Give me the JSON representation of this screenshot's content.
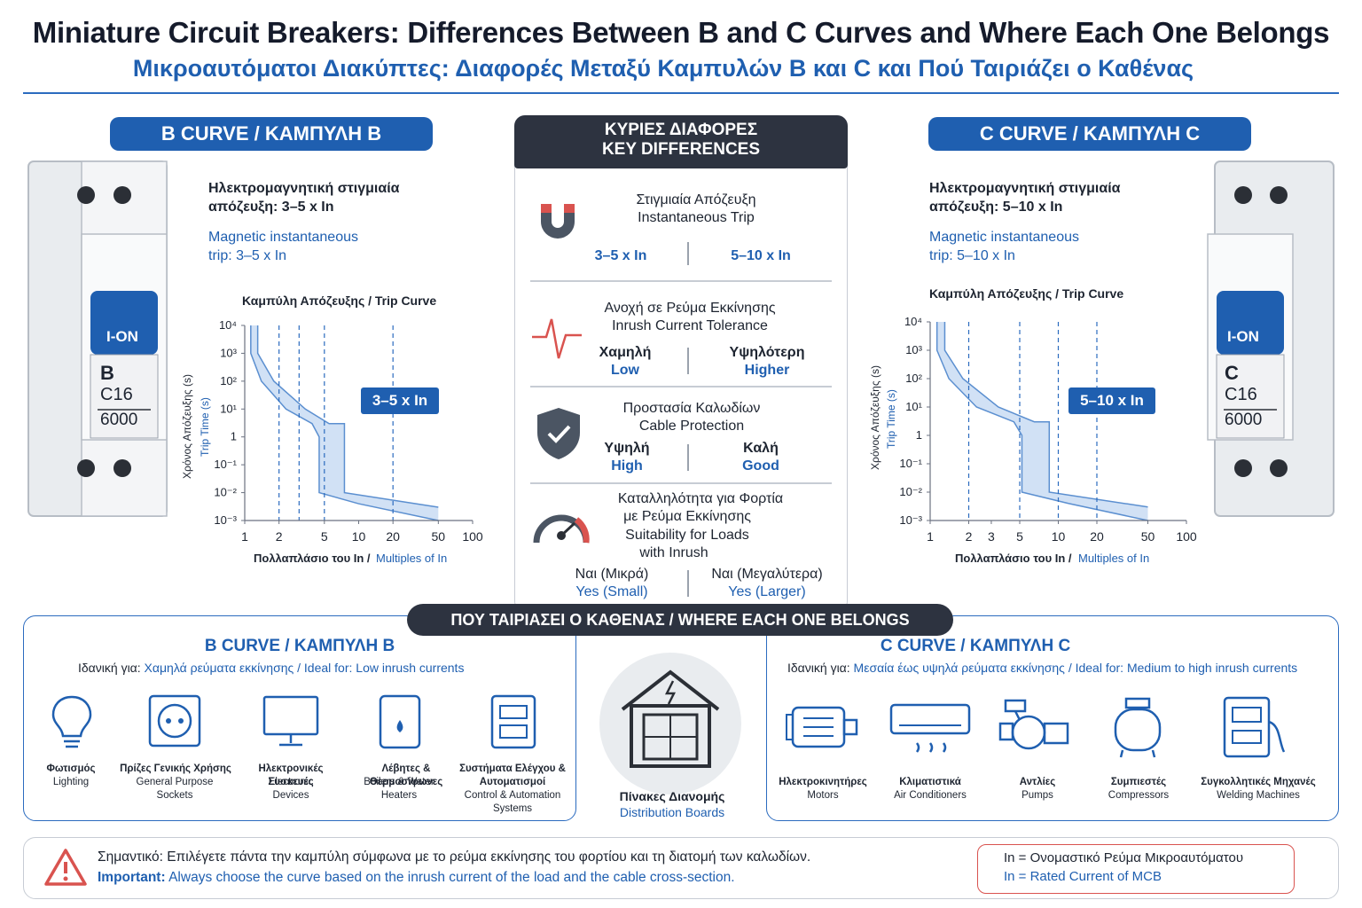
{
  "title": {
    "en": "Miniature Circuit Breakers: Differences Between B and C Curves and Where Each One Belongs",
    "gr": "Μικροαυτόματοι Διακύπτες: Διαφορές Μεταξύ Καμπυλών Β και C και Πού Ταιριάζει ο Καθένας"
  },
  "left": {
    "header": "B CURVE / ΚΑΜΠΥΛΗ Β",
    "breaker": {
      "on_label": "I-ON",
      "curve_letter": "B",
      "rating": "C16",
      "capacity": "6000"
    },
    "trip_gr_1": "Ηλεκτρομαγνητική στιγμιαία",
    "trip_gr_2": "απόζευξη: 3–5 x In",
    "trip_en_1": "Magnetic instantaneous",
    "trip_en_2": "trip: 3–5 x In",
    "chart_title": "Καμπύλη Απόζευξης / Trip Curve",
    "ylabel_gr": "Χρόνος Απόζευξης (s)",
    "ylabel_en": "Trip Time (s)",
    "xlabel_gr": "Πολλαπλάσιο του In /",
    "xlabel_en": "Multiples of In",
    "badge": "3–5 x In",
    "xticks": [
      "1",
      "2",
      "5",
      "10",
      "20",
      "50",
      "100"
    ]
  },
  "right": {
    "header": "C CURVE / ΚΑΜΠΥΛΗ C",
    "breaker": {
      "on_label": "I-ON",
      "curve_letter": "C",
      "rating": "C16",
      "capacity": "6000"
    },
    "trip_gr_1": "Ηλεκτρομαγνητική στιγμιαία",
    "trip_gr_2": "απόζευξη: 5–10 x In",
    "trip_en_1": "Magnetic instantaneous",
    "trip_en_2": "trip: 5–10 x In",
    "chart_title": "Καμπύλη Απόζευξης / Trip Curve",
    "ylabel_gr": "Χρόνος Απόζευξης (s)",
    "ylabel_en": "Trip Time (s)",
    "xlabel_gr": "Πολλαπλάσιο του In /",
    "xlabel_en": "Multiples of In",
    "badge": "5–10 x In",
    "xticks": [
      "1",
      "2",
      "3",
      "5",
      "10",
      "20",
      "50",
      "100"
    ]
  },
  "yticks": [
    "10⁴",
    "10³",
    "10²",
    "10¹",
    "1",
    "10⁻¹",
    "10⁻²",
    "10⁻³"
  ],
  "chart_data": [
    {
      "type": "area",
      "title": "Καμπύλη Απόζευξης / Trip Curve",
      "xlabel": "Πολλαπλάσιο του In / Multiples of In",
      "ylabel": "Χρόνος Απόζευξης (s) / Trip Time (s)",
      "xscale": "log",
      "yscale": "log",
      "xlim": [
        1,
        100
      ],
      "ylim": [
        0.001,
        10000
      ],
      "magnetic_band": [
        3,
        5
      ],
      "upper": {
        "x": [
          1.3,
          1.3,
          1.8,
          3.4,
          5.5,
          7.5,
          7.5,
          50
        ],
        "y": [
          10000,
          1000,
          100,
          10,
          3,
          3,
          0.01,
          0.003
        ]
      },
      "lower": {
        "x": [
          1.13,
          1.13,
          1.4,
          2.3,
          3.9,
          4.5,
          4.5,
          10,
          50
        ],
        "y": [
          10000,
          1000,
          100,
          10,
          3,
          1,
          0.01,
          0.004,
          0.001
        ]
      },
      "grid": false
    },
    {
      "type": "area",
      "title": "Καμπύλη Απόζευξης / Trip Curve",
      "xlabel": "Πολλαπλάσιο του In / Multiples of In",
      "ylabel": "Χρόνος Απόζευξης (s) / Trip Time (s)",
      "xscale": "log",
      "yscale": "log",
      "xlim": [
        1,
        100
      ],
      "ylim": [
        0.001,
        10000
      ],
      "magnetic_band": [
        5,
        10
      ],
      "upper": {
        "x": [
          1.3,
          1.3,
          1.8,
          3.4,
          6.5,
          8.5,
          8.5,
          50
        ],
        "y": [
          10000,
          1000,
          100,
          10,
          3,
          3,
          0.01,
          0.003
        ]
      },
      "lower": {
        "x": [
          1.13,
          1.13,
          1.4,
          2.3,
          4.5,
          5.2,
          5.2,
          12,
          50
        ],
        "y": [
          10000,
          1000,
          100,
          10,
          3,
          1,
          0.01,
          0.004,
          0.001
        ]
      },
      "grid": false
    }
  ],
  "middle": {
    "header_gr": "ΚΥΡΙΕΣ ΔΙΑΦΟΡΕΣ",
    "header_en": "KEY DIFFERENCES",
    "rows": [
      {
        "t_gr": "Στιγμιαία Απόζευξη",
        "t_en": "Instantaneous Trip",
        "b_val": "3–5 x In",
        "c_val": "5–10 x In"
      },
      {
        "t_gr": "Ανοχή σε Ρεύμα Εκκίνησης",
        "t_en": "Inrush Current Tolerance",
        "b_gr": "Χαμηλή",
        "b_en": "Low",
        "c_gr": "Υψηλότερη",
        "c_en": "Higher"
      },
      {
        "t_gr": "Προστασία Καλωδίων",
        "t_en": "Cable Protection",
        "b_gr": "Υψηλή",
        "b_en": "High",
        "c_gr": "Καλή",
        "c_en": "Good"
      },
      {
        "t_gr1": "Καταλληλότητα για Φορτία",
        "t_gr2": "με Ρεύμα Εκκίνησης",
        "t_en1": "Suitability for Loads",
        "t_en2": "with Inrush",
        "b_gr": "Ναι (Μικρά)",
        "b_en": "Yes (Small)",
        "c_gr": "Ναι (Μεγαλύτερα)",
        "c_en": "Yes (Larger)"
      }
    ]
  },
  "belongs": {
    "header": "ΠΟΥ ΤΑΙΡΙΑΣΕΙ Ο ΚΑΘΕΝΑΣ / WHERE EACH ONE BELONGS",
    "b_title": "B CURVE / ΚΑΜΠΥΛΗ Β",
    "b_prefix": "Ιδανική για:",
    "b_ideal": "Χαμηλά ρεύματα εκκίνησης / Ideal for: Low inrush currents",
    "b_items": [
      {
        "gr": "Φωτισμός",
        "en": "Lighting"
      },
      {
        "gr": "Πρίζες Γενικής Χρήσης",
        "en": "General Purpose Sockets"
      },
      {
        "gr": "Ηλεκτρονικές Συσκευές",
        "en": "Electronic Devices"
      },
      {
        "gr": "Λέβητες & Θερμοσίφωνες",
        "en": "Boilers & Water Heaters"
      },
      {
        "gr": "Συστήματα Ελέγχου & Αυτοματισμοί",
        "en": "Control & Automation Systems"
      }
    ],
    "center_gr": "Πίνακες Διανομής",
    "center_en": "Distribution Boards",
    "c_title": "C CURVE / ΚΑΜΠΥΛΗ C",
    "c_prefix": "Ιδανική για:",
    "c_ideal": "Μεσαία έως υψηλά ρεύματα εκκίνησης / Ideal for: Medium to high inrush currents",
    "c_items": [
      {
        "gr": "Ηλεκτροκινητήρες",
        "en": "Motors"
      },
      {
        "gr": "Κλιματιστικά",
        "en": "Air Conditioners"
      },
      {
        "gr": "Αντλίες",
        "en": "Pumps"
      },
      {
        "gr": "Συμπιεστές",
        "en": "Compressors"
      },
      {
        "gr": "Συγκολλητικές Μηχανές",
        "en": "Welding Machines"
      }
    ]
  },
  "footer": {
    "gr": "Σημαντικό: Επιλέγετε πάντα την καμπύλη σύμφωνα με το ρεύμα εκκίνησης του φορτίου και τη διατομή των καλωδίων.",
    "en_bold": "Important:",
    "en": "Always choose the curve based on the inrush current of the load and the cable cross-section.",
    "note_gr": "In = Ονομαστικό Ρεύμα Μικροαυτόματου",
    "note_en": "In = Rated Current of MCB"
  },
  "colors": {
    "brand_blue": "#1f5fb0",
    "dark": "#2d3340",
    "curve_fill": "#c9dcf3",
    "warning_red": "#d9534f"
  }
}
